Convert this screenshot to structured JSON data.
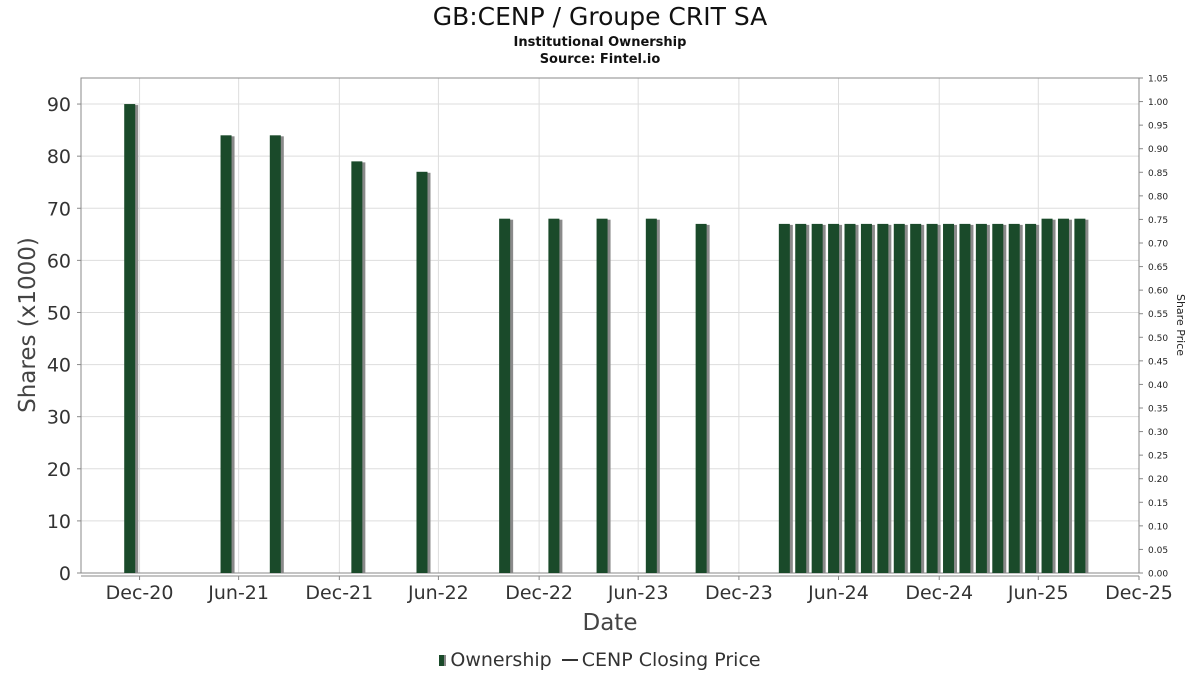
{
  "title": "GB:CENP / Groupe CRIT SA",
  "subtitle": "Institutional Ownership",
  "source": "Source: Fintel.io",
  "colors": {
    "bar": "#1a4a2a",
    "bar_shadow": "#8a8a8a",
    "grid": "#dddddd",
    "axis": "#888888"
  },
  "legend": {
    "ownership": "Ownership",
    "price": "CENP Closing Price"
  },
  "chart_data": {
    "type": "bar",
    "title": "GB:CENP / Groupe CRIT SA",
    "xlabel": "Date",
    "ylabel": "Shares (x1000)",
    "y2label": "Share Price",
    "ylim": [
      0,
      95
    ],
    "y2lim": [
      0,
      1.05
    ],
    "yticks": [
      "0",
      "10",
      "20",
      "30",
      "40",
      "50",
      "60",
      "70",
      "80",
      "90"
    ],
    "y2ticks": [
      "0.00",
      "0.05",
      "0.10",
      "0.15",
      "0.20",
      "0.25",
      "0.30",
      "0.35",
      "0.40",
      "0.45",
      "0.50",
      "0.55",
      "0.60",
      "0.65",
      "0.70",
      "0.75",
      "0.80",
      "0.85",
      "0.90",
      "0.95",
      "1.00",
      "1.05"
    ],
    "xlim": [
      "2020-09-15",
      "2025-12-31"
    ],
    "xticks": [
      {
        "date": "2020-12-31",
        "label": "Dec-20"
      },
      {
        "date": "2021-06-30",
        "label": "Jun-21"
      },
      {
        "date": "2021-12-31",
        "label": "Dec-21"
      },
      {
        "date": "2022-06-30",
        "label": "Jun-22"
      },
      {
        "date": "2022-12-31",
        "label": "Dec-22"
      },
      {
        "date": "2023-06-30",
        "label": "Jun-23"
      },
      {
        "date": "2023-12-31",
        "label": "Dec-23"
      },
      {
        "date": "2024-06-30",
        "label": "Jun-24"
      },
      {
        "date": "2024-12-31",
        "label": "Dec-24"
      },
      {
        "date": "2025-06-30",
        "label": "Jun-25"
      },
      {
        "date": "2025-12-31",
        "label": "Dec-25"
      }
    ],
    "grid": true,
    "legend_position": "bottom",
    "series": [
      {
        "name": "Ownership",
        "points": [
          {
            "x": "2020-12-13",
            "y": 90
          },
          {
            "x": "2021-06-07",
            "y": 84
          },
          {
            "x": "2021-09-05",
            "y": 84
          },
          {
            "x": "2022-02-01",
            "y": 79
          },
          {
            "x": "2022-05-31",
            "y": 77
          },
          {
            "x": "2022-10-29",
            "y": 68
          },
          {
            "x": "2023-01-27",
            "y": 68
          },
          {
            "x": "2023-04-25",
            "y": 68
          },
          {
            "x": "2023-07-24",
            "y": 68
          },
          {
            "x": "2023-10-23",
            "y": 67
          },
          {
            "x": "2024-03-23",
            "y": 67
          },
          {
            "x": "2024-04-22",
            "y": 67
          },
          {
            "x": "2024-05-22",
            "y": 67
          },
          {
            "x": "2024-06-21",
            "y": 67
          },
          {
            "x": "2024-07-21",
            "y": 67
          },
          {
            "x": "2024-08-20",
            "y": 67
          },
          {
            "x": "2024-09-19",
            "y": 67
          },
          {
            "x": "2024-10-19",
            "y": 67
          },
          {
            "x": "2024-11-18",
            "y": 67
          },
          {
            "x": "2024-12-18",
            "y": 67
          },
          {
            "x": "2025-01-17",
            "y": 67
          },
          {
            "x": "2025-02-16",
            "y": 67
          },
          {
            "x": "2025-03-18",
            "y": 67
          },
          {
            "x": "2025-04-17",
            "y": 67
          },
          {
            "x": "2025-05-17",
            "y": 67
          },
          {
            "x": "2025-06-16",
            "y": 67
          },
          {
            "x": "2025-07-16",
            "y": 68
          },
          {
            "x": "2025-08-15",
            "y": 68
          },
          {
            "x": "2025-09-14",
            "y": 68
          }
        ]
      },
      {
        "name": "CENP Closing Price",
        "points": []
      }
    ]
  }
}
